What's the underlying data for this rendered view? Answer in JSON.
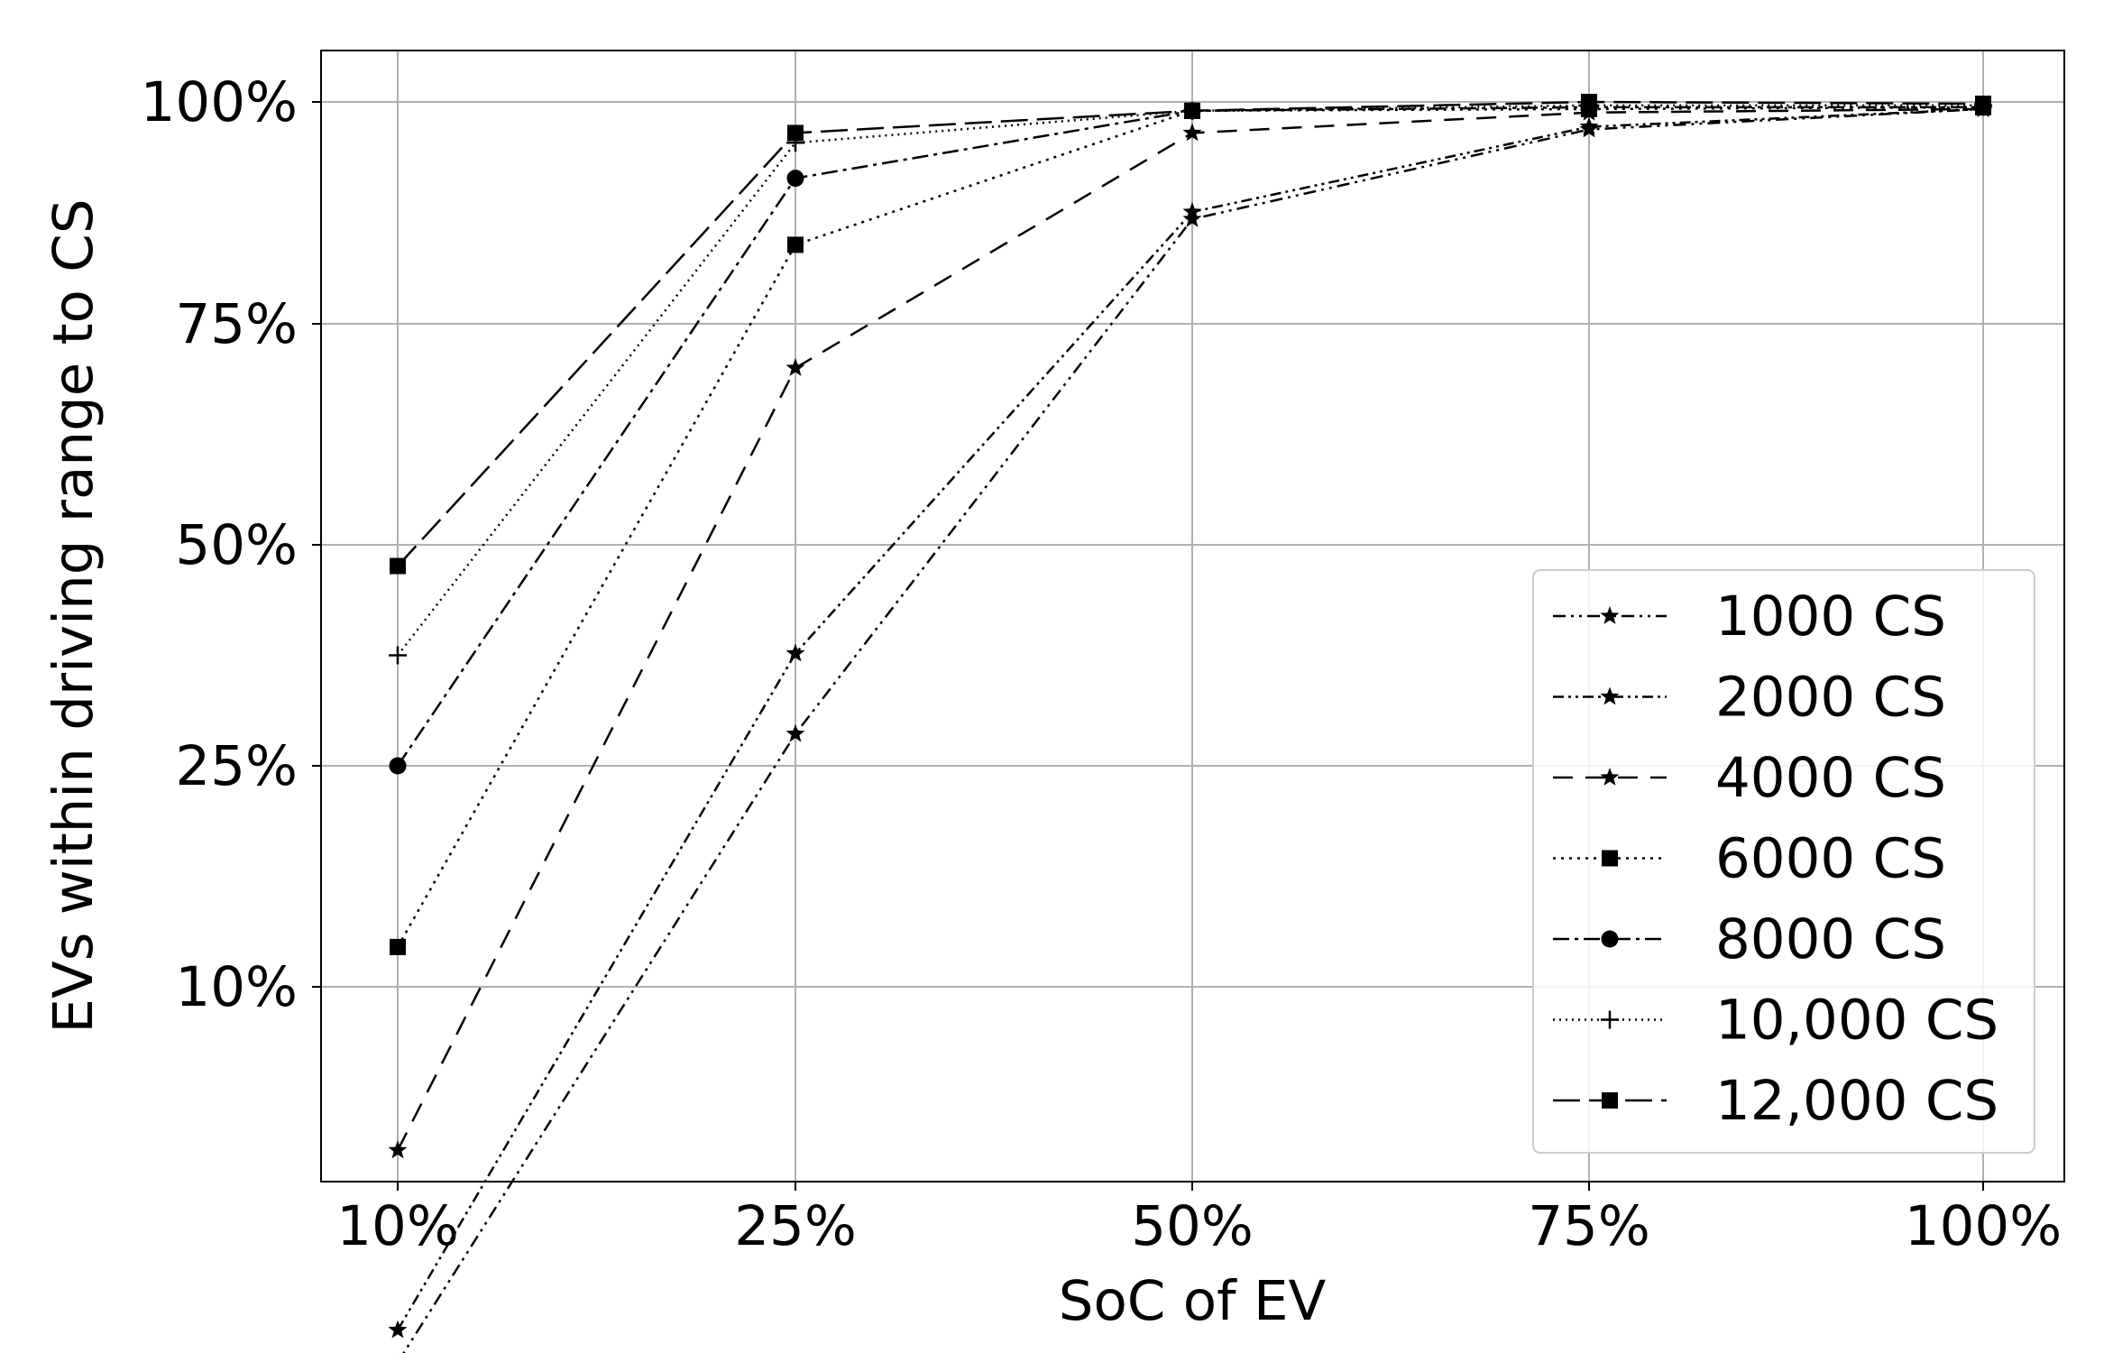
{
  "chart_data": {
    "type": "line",
    "title": "",
    "xlabel": "SoC of EV",
    "ylabel": "EVs within driving range to CS",
    "categories": [
      "10%",
      "25%",
      "50%",
      "75%",
      "100%"
    ],
    "yticks": [
      "10%",
      "25%",
      "50%",
      "75%",
      "100%"
    ],
    "grid": true,
    "legend_position": "lower-right",
    "series": [
      {
        "name": "1000 CS",
        "marker": "star",
        "dash": "dashdotdot",
        "values": [
          -15.5,
          28.6,
          86.8,
          96.9,
          99.2
        ]
      },
      {
        "name": "2000 CS",
        "marker": "star",
        "dash": "dashdotdot2",
        "values": [
          -13.3,
          37.7,
          87.6,
          97.2,
          99.2
        ]
      },
      {
        "name": "4000 CS",
        "marker": "star",
        "dash": "dashed",
        "values": [
          -1.1,
          70.0,
          96.5,
          98.8,
          99.2
        ]
      },
      {
        "name": "6000 CS",
        "marker": "square",
        "dash": "dotted",
        "values": [
          12.7,
          83.9,
          99.0,
          99.2,
          99.4
        ]
      },
      {
        "name": "8000 CS",
        "marker": "circle",
        "dash": "dashdot",
        "values": [
          25.0,
          91.4,
          99.0,
          99.4,
          99.4
        ]
      },
      {
        "name": "10,000 CS",
        "marker": "plus",
        "dash": "dotted2",
        "values": [
          37.5,
          95.4,
          99.0,
          99.6,
          99.6
        ]
      },
      {
        "name": "12,000 CS",
        "marker": "square",
        "dash": "longdash",
        "values": [
          47.6,
          96.5,
          99.0,
          100.0,
          99.8
        ]
      }
    ]
  }
}
